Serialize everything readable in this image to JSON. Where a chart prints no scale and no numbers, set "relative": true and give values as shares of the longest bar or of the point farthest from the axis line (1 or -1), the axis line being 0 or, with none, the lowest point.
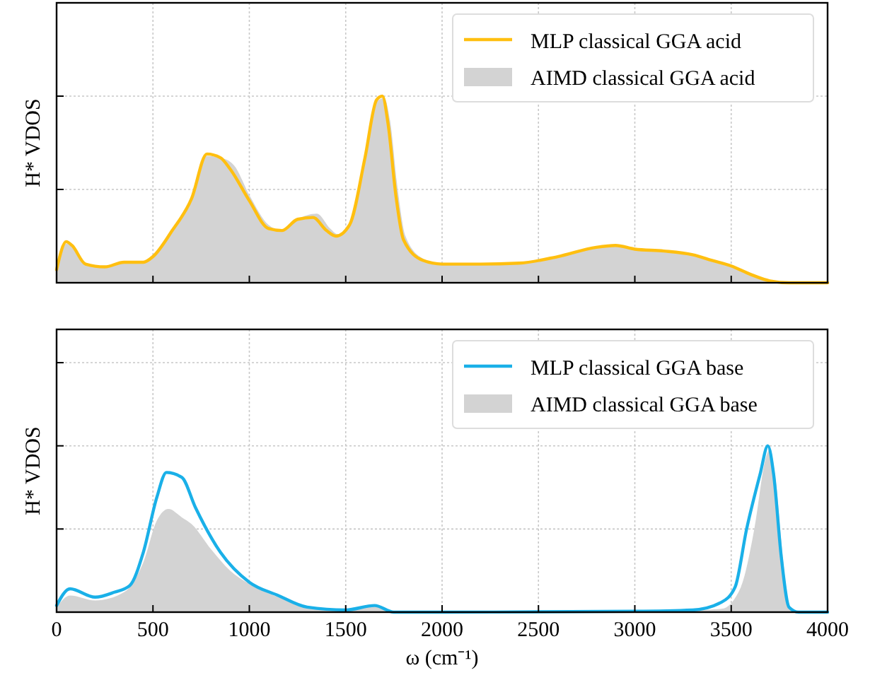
{
  "chart_data": [
    {
      "type": "line",
      "ylabel": "H* VDOS",
      "relative": true,
      "xlim": [
        0,
        4000
      ],
      "xticks": [
        0,
        500,
        1000,
        1500,
        2000,
        2500,
        3000,
        3500,
        4000
      ],
      "tick_labels": false,
      "grid": true,
      "legend": "top right",
      "series": [
        {
          "name": "AIMD classical GGA acid",
          "type": "area",
          "color": "#d3d3d3",
          "x": [
            0,
            50,
            80,
            150,
            250,
            350,
            450,
            500,
            600,
            700,
            780,
            850,
            920,
            1000,
            1100,
            1170,
            1250,
            1350,
            1420,
            1460,
            1520,
            1600,
            1660,
            1700,
            1730,
            1770,
            1810,
            1900,
            2000,
            2200,
            2400,
            2600,
            2800,
            2900,
            3000,
            3150,
            3300,
            3400,
            3500,
            3600,
            3700,
            3800,
            4000
          ],
          "values": [
            0.07,
            0.21,
            0.2,
            0.1,
            0.09,
            0.11,
            0.11,
            0.14,
            0.27,
            0.45,
            0.68,
            0.67,
            0.63,
            0.47,
            0.31,
            0.28,
            0.34,
            0.37,
            0.29,
            0.26,
            0.3,
            0.65,
            0.97,
            0.99,
            0.87,
            0.5,
            0.25,
            0.13,
            0.1,
            0.1,
            0.11,
            0.14,
            0.19,
            0.2,
            0.18,
            0.17,
            0.15,
            0.12,
            0.09,
            0.045,
            0.01,
            0,
            0
          ]
        },
        {
          "name": "MLP classical GGA acid",
          "color": "#ffbf10",
          "x": [
            0,
            50,
            80,
            150,
            250,
            350,
            450,
            500,
            600,
            700,
            780,
            850,
            900,
            1000,
            1100,
            1170,
            1250,
            1330,
            1400,
            1450,
            1520,
            1600,
            1660,
            1690,
            1720,
            1760,
            1800,
            1900,
            2000,
            2200,
            2400,
            2600,
            2800,
            2900,
            3000,
            3150,
            3300,
            3400,
            3500,
            3600,
            3700,
            3800,
            4000
          ],
          "values": [
            0.07,
            0.22,
            0.2,
            0.1,
            0.085,
            0.11,
            0.11,
            0.14,
            0.28,
            0.45,
            0.69,
            0.67,
            0.61,
            0.44,
            0.29,
            0.28,
            0.34,
            0.35,
            0.28,
            0.25,
            0.31,
            0.67,
            0.98,
            1,
            0.85,
            0.47,
            0.23,
            0.12,
            0.1,
            0.1,
            0.105,
            0.14,
            0.19,
            0.2,
            0.18,
            0.17,
            0.15,
            0.12,
            0.09,
            0.045,
            0.01,
            0,
            0
          ]
        }
      ]
    },
    {
      "type": "line",
      "ylabel": "H* VDOS",
      "xlabel": "ω (cm⁻¹)",
      "relative": true,
      "xlim": [
        0,
        4000
      ],
      "xticks": [
        0,
        500,
        1000,
        1500,
        2000,
        2500,
        3000,
        3500,
        4000
      ],
      "tick_labels": "x",
      "grid": true,
      "legend": "top right",
      "series": [
        {
          "name": "AIMD classical GGA base",
          "type": "area",
          "color": "#d3d3d3",
          "x": [
            0,
            70,
            200,
            350,
            450,
            520,
            580,
            650,
            700,
            800,
            900,
            1000,
            1150,
            1300,
            1500,
            1650,
            1750,
            2000,
            3000,
            3450,
            3550,
            3620,
            3680,
            3700,
            3730,
            3770,
            3800,
            3850,
            4000
          ],
          "values": [
            0.03,
            0.1,
            0.07,
            0.12,
            0.3,
            0.55,
            0.62,
            0.57,
            0.53,
            0.38,
            0.25,
            0.17,
            0.09,
            0.03,
            0.01,
            0.04,
            0,
            0,
            0,
            0.02,
            0.15,
            0.5,
            0.93,
            0.98,
            0.8,
            0.3,
            0.03,
            0,
            0
          ]
        },
        {
          "name": "MLP classical GGA base",
          "color": "#1ab0e8",
          "x": [
            0,
            70,
            200,
            300,
            380,
            450,
            520,
            570,
            650,
            720,
            850,
            1000,
            1150,
            1300,
            1500,
            1650,
            1750,
            2000,
            3000,
            3300,
            3450,
            3520,
            3580,
            3650,
            3690,
            3720,
            3760,
            3800,
            3850,
            4000
          ],
          "values": [
            0.04,
            0.14,
            0.09,
            0.12,
            0.16,
            0.36,
            0.69,
            0.84,
            0.81,
            0.63,
            0.36,
            0.18,
            0.1,
            0.03,
            0.013,
            0.04,
            0,
            0,
            0.005,
            0.013,
            0.06,
            0.15,
            0.5,
            0.83,
            1,
            0.83,
            0.33,
            0.03,
            0,
            0
          ]
        }
      ]
    }
  ]
}
